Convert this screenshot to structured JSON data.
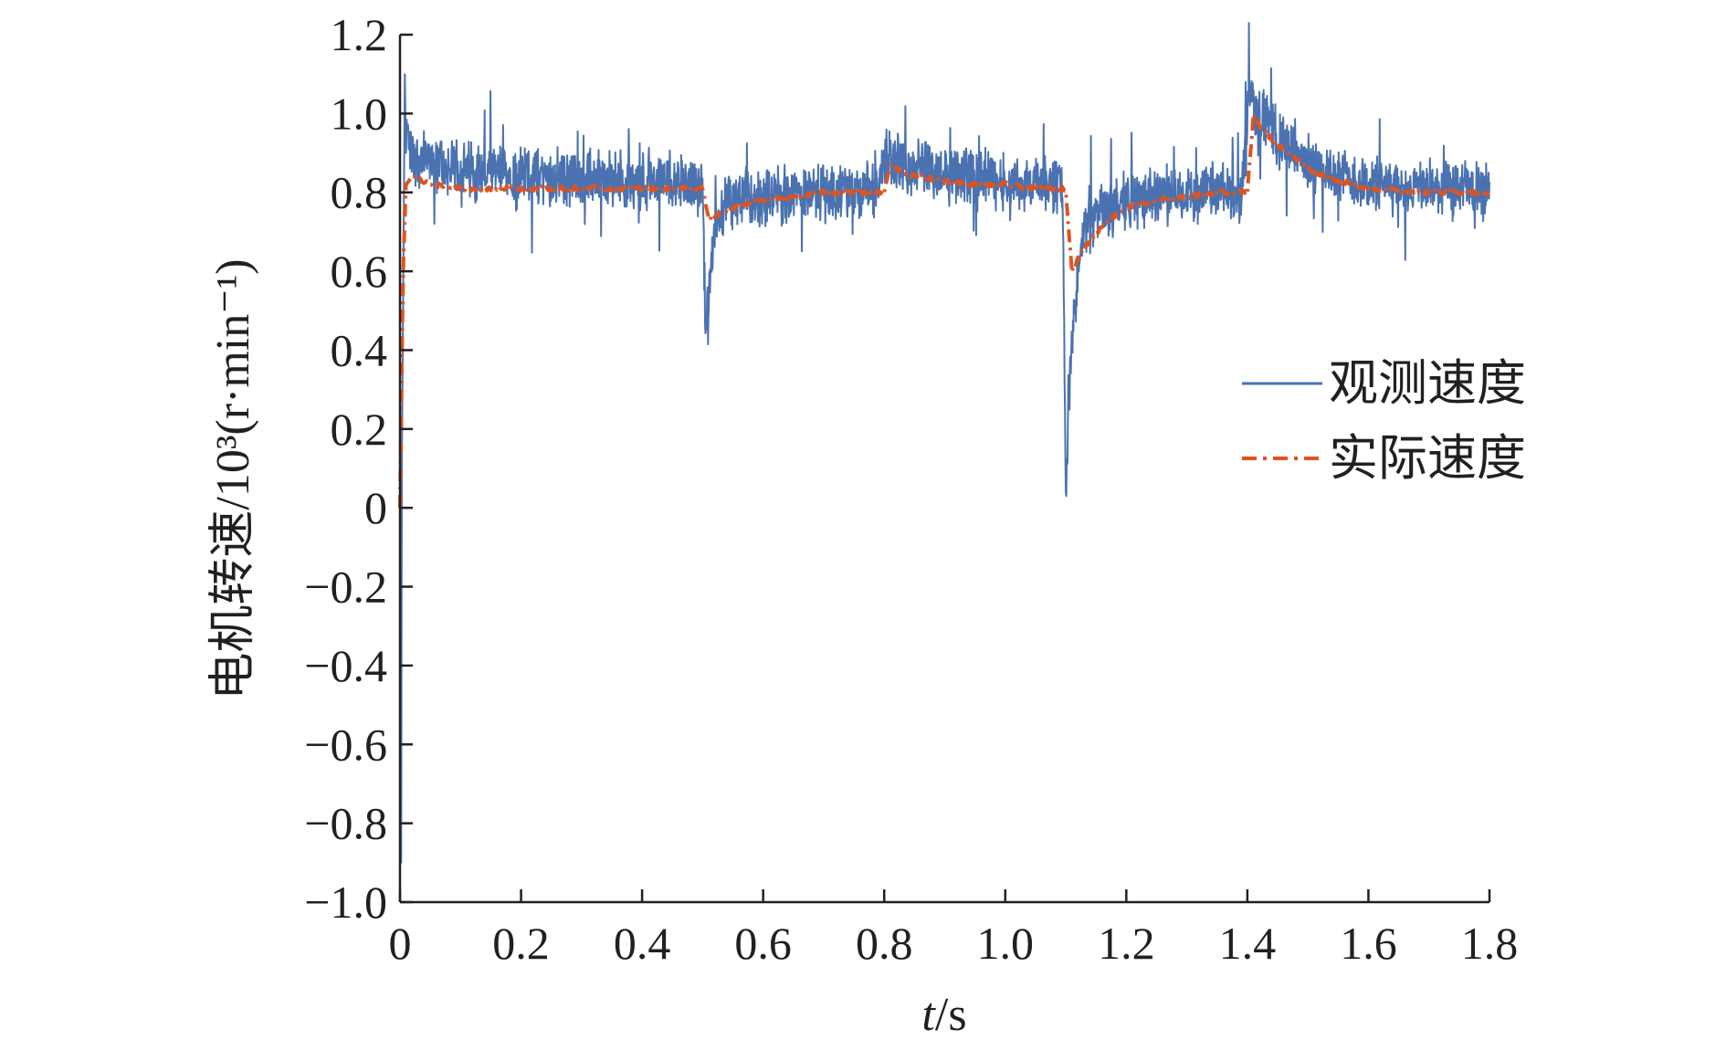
{
  "chart_data": {
    "type": "line",
    "xlabel_italic": "t",
    "xlabel_unit": "/s",
    "ylabel": "电机转速/10³(r·min⁻¹)",
    "xlim": [
      0,
      1.8
    ],
    "ylim": [
      -1.0,
      1.2
    ],
    "x_ticks": [
      "0",
      "0.2",
      "0.4",
      "0.6",
      "0.8",
      "1.0",
      "1.2",
      "1.4",
      "1.6",
      "1.8"
    ],
    "y_ticks": [
      "1.2",
      "1.0",
      "0.8",
      "0.6",
      "0.4",
      "0.2",
      "0",
      "−0.2",
      "−0.4",
      "−0.6",
      "−0.8",
      "−1.0"
    ],
    "legend_position": "right",
    "series": [
      {
        "name": "观测速度",
        "color": "#4a72b0",
        "style": "solid",
        "x": [
          0,
          0.002,
          0.004,
          0.006,
          0.008,
          0.012,
          0.02,
          0.04,
          0.08,
          0.15,
          0.25,
          0.35,
          0.45,
          0.495,
          0.5,
          0.505,
          0.51,
          0.515,
          0.52,
          0.53,
          0.55,
          0.6,
          0.65,
          0.7,
          0.75,
          0.79,
          0.8,
          0.805,
          0.81,
          0.85,
          0.9,
          0.95,
          1.0,
          1.05,
          1.09,
          1.095,
          1.1,
          1.105,
          1.11,
          1.115,
          1.12,
          1.13,
          1.15,
          1.2,
          1.25,
          1.3,
          1.35,
          1.39,
          1.4,
          1.405,
          1.41,
          1.43,
          1.46,
          1.5,
          1.55,
          1.6,
          1.7,
          1.8
        ],
        "y": [
          0,
          -0.9,
          0.3,
          0.7,
          1.1,
          0.95,
          0.9,
          0.88,
          0.86,
          0.85,
          0.84,
          0.83,
          0.83,
          0.82,
          0.8,
          0.44,
          0.55,
          0.6,
          0.7,
          0.76,
          0.78,
          0.79,
          0.8,
          0.8,
          0.8,
          0.8,
          0.87,
          0.93,
          0.88,
          0.86,
          0.85,
          0.84,
          0.83,
          0.82,
          0.82,
          0.8,
          0.0,
          0.3,
          0.4,
          0.5,
          0.6,
          0.7,
          0.74,
          0.78,
          0.79,
          0.8,
          0.8,
          0.8,
          0.98,
          1.06,
          1.03,
          0.98,
          0.92,
          0.87,
          0.84,
          0.82,
          0.81,
          0.8
        ],
        "noise_amplitude": 0.06
      },
      {
        "name": "实际速度",
        "color": "#e0531e",
        "style": "dashdot",
        "x": [
          0,
          0.005,
          0.01,
          0.02,
          0.05,
          0.1,
          0.2,
          0.3,
          0.4,
          0.5,
          0.51,
          0.52,
          0.55,
          0.6,
          0.65,
          0.7,
          0.75,
          0.8,
          0.81,
          0.82,
          0.85,
          0.9,
          0.95,
          1.0,
          1.05,
          1.1,
          1.11,
          1.12,
          1.14,
          1.17,
          1.2,
          1.25,
          1.3,
          1.35,
          1.4,
          1.41,
          1.42,
          1.45,
          1.5,
          1.55,
          1.6,
          1.7,
          1.8
        ],
        "y": [
          0,
          0.6,
          0.82,
          0.84,
          0.82,
          0.81,
          0.81,
          0.81,
          0.81,
          0.81,
          0.73,
          0.74,
          0.76,
          0.78,
          0.79,
          0.8,
          0.8,
          0.8,
          0.87,
          0.86,
          0.84,
          0.83,
          0.82,
          0.82,
          0.81,
          0.81,
          0.6,
          0.63,
          0.68,
          0.73,
          0.76,
          0.78,
          0.79,
          0.8,
          0.8,
          1.0,
          0.97,
          0.92,
          0.86,
          0.83,
          0.81,
          0.8,
          0.8
        ]
      }
    ]
  }
}
